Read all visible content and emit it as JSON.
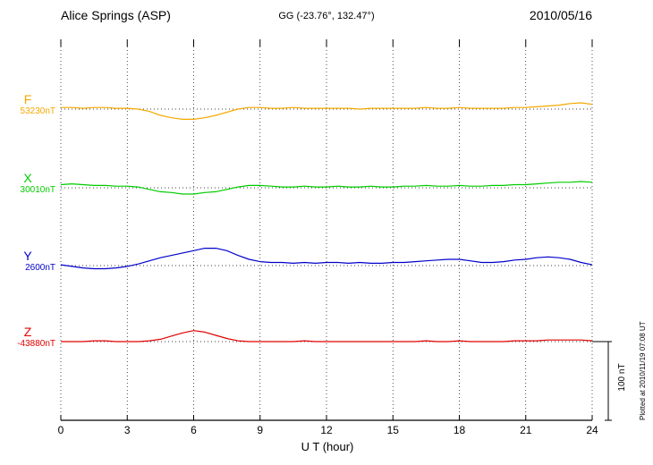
{
  "header": {
    "station": "Alice Springs (ASP)",
    "coordinates": "GG (-23.76°, 132.47°)",
    "date": "2010/05/16"
  },
  "footer": {
    "plotted_at": "Plotted at 2010/11/19 07:08 UT"
  },
  "chart_data": {
    "type": "line",
    "title": "Alice Springs (ASP) magnetogram 2010/05/16",
    "xlabel": "U T (hour)",
    "xlim": [
      0,
      24
    ],
    "x_ticks": [
      0,
      3,
      6,
      9,
      12,
      15,
      18,
      21,
      24
    ],
    "x_start": 0,
    "x_step": 0.5,
    "units": "nT",
    "grid": "dotted vertical gridlines every 3 hours; dotted horizontal baseline per trace",
    "scale_bar": {
      "label": "100 nT",
      "nT": 100
    },
    "series": [
      {
        "name": "F",
        "baseline_label": "53230nT",
        "baseline_nT": 53230,
        "color": "#f5a800",
        "offsets_nT": [
          2,
          2,
          1,
          2,
          2,
          1,
          1,
          0,
          -3,
          -8,
          -11,
          -13,
          -13,
          -11,
          -8,
          -4,
          0,
          2,
          2,
          1,
          1,
          2,
          1,
          1,
          1,
          1,
          1,
          0,
          1,
          1,
          1,
          1,
          1,
          2,
          1,
          1,
          2,
          1,
          1,
          1,
          1,
          2,
          2,
          3,
          4,
          5,
          7,
          8,
          6
        ]
      },
      {
        "name": "X",
        "baseline_label": "30010nT",
        "baseline_nT": 30010,
        "color": "#00cc00",
        "offsets_nT": [
          4,
          5,
          4,
          3,
          3,
          2,
          2,
          1,
          -2,
          -5,
          -6,
          -8,
          -8,
          -6,
          -5,
          -2,
          1,
          3,
          3,
          2,
          1,
          1,
          2,
          1,
          1,
          2,
          1,
          1,
          2,
          1,
          1,
          2,
          2,
          3,
          2,
          2,
          3,
          2,
          2,
          3,
          3,
          4,
          4,
          5,
          6,
          7,
          7,
          8,
          7
        ]
      },
      {
        "name": "Y",
        "baseline_label": "2600nT",
        "baseline_nT": 2600,
        "color": "#0000cc",
        "offsets_nT": [
          1,
          -1,
          -3,
          -4,
          -4,
          -3,
          -1,
          2,
          6,
          10,
          13,
          16,
          19,
          22,
          22,
          19,
          13,
          8,
          5,
          4,
          4,
          3,
          4,
          3,
          4,
          4,
          3,
          4,
          3,
          3,
          4,
          4,
          5,
          6,
          7,
          8,
          8,
          6,
          4,
          4,
          5,
          7,
          8,
          10,
          11,
          10,
          8,
          4,
          1
        ]
      },
      {
        "name": "Z",
        "baseline_label": "-43880nT",
        "baseline_nT": -43880,
        "color": "#e00000",
        "offsets_nT": [
          0,
          0,
          0,
          1,
          1,
          0,
          0,
          0,
          1,
          3,
          7,
          11,
          14,
          12,
          8,
          4,
          1,
          0,
          0,
          0,
          0,
          0,
          1,
          0,
          0,
          0,
          0,
          0,
          0,
          0,
          0,
          0,
          0,
          1,
          0,
          0,
          1,
          0,
          0,
          0,
          0,
          1,
          1,
          1,
          2,
          2,
          2,
          2,
          1
        ]
      }
    ]
  }
}
